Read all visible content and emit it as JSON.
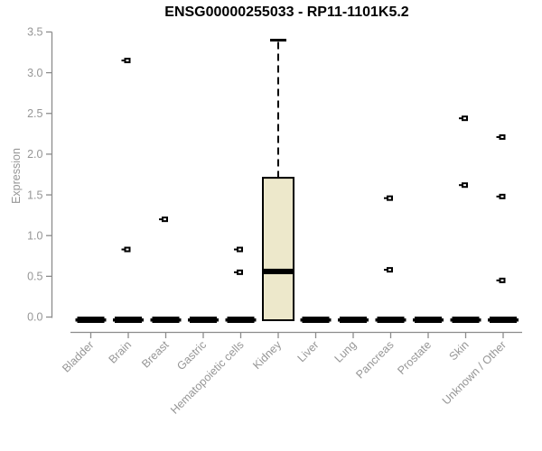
{
  "chart_data": {
    "type": "boxplot",
    "title": "ENSG00000255033 - RP11-1101K5.2",
    "ylabel": "Expression",
    "xlabel": "",
    "ylim": [
      0,
      3.5
    ],
    "yticks": [
      0.0,
      0.5,
      1.0,
      1.5,
      2.0,
      2.5,
      3.0,
      3.5
    ],
    "grid": false,
    "legend": "none",
    "categories": [
      "Bladder",
      "Brain",
      "Breast",
      "Gastric",
      "Hematopoietic cells",
      "Kidney",
      "Liver",
      "Lung",
      "Pancreas",
      "Prostate",
      "Skin",
      "Unknown / Other"
    ],
    "boxes": [
      {
        "category": "Bladder",
        "q1": 0,
        "median": 0,
        "q3": 0,
        "whisker_low": 0,
        "whisker_high": 0,
        "outliers": []
      },
      {
        "category": "Brain",
        "q1": 0,
        "median": 0,
        "q3": 0,
        "whisker_low": 0,
        "whisker_high": 0,
        "outliers": [
          3.15,
          0.83
        ]
      },
      {
        "category": "Breast",
        "q1": 0,
        "median": 0,
        "q3": 0,
        "whisker_low": 0,
        "whisker_high": 0,
        "outliers": [
          1.2
        ]
      },
      {
        "category": "Gastric",
        "q1": 0,
        "median": 0,
        "q3": 0,
        "whisker_low": 0,
        "whisker_high": 0,
        "outliers": []
      },
      {
        "category": "Hematopoietic cells",
        "q1": 0,
        "median": 0,
        "q3": 0,
        "whisker_low": 0,
        "whisker_high": 0,
        "outliers": [
          0.83,
          0.55
        ]
      },
      {
        "category": "Kidney",
        "q1": 0,
        "median": 0.56,
        "q3": 1.71,
        "whisker_low": 0,
        "whisker_high": 3.4,
        "outliers": []
      },
      {
        "category": "Liver",
        "q1": 0,
        "median": 0,
        "q3": 0,
        "whisker_low": 0,
        "whisker_high": 0,
        "outliers": []
      },
      {
        "category": "Lung",
        "q1": 0,
        "median": 0,
        "q3": 0,
        "whisker_low": 0,
        "whisker_high": 0,
        "outliers": []
      },
      {
        "category": "Pancreas",
        "q1": 0,
        "median": 0,
        "q3": 0,
        "whisker_low": 0,
        "whisker_high": 0,
        "outliers": [
          1.46,
          0.58
        ]
      },
      {
        "category": "Prostate",
        "q1": 0,
        "median": 0,
        "q3": 0,
        "whisker_low": 0,
        "whisker_high": 0,
        "outliers": []
      },
      {
        "category": "Skin",
        "q1": 0,
        "median": 0,
        "q3": 0,
        "whisker_low": 0,
        "whisker_high": 0,
        "outliers": [
          2.44,
          1.62
        ]
      },
      {
        "category": "Unknown / Other",
        "q1": 0,
        "median": 0,
        "q3": 0,
        "whisker_low": 0,
        "whisker_high": 0,
        "outliers": [
          2.21,
          1.48,
          0.45
        ]
      }
    ],
    "colors": {
      "box_fill": "#EDE8CB",
      "box_stroke": "#000000",
      "median": "#000000",
      "whisker": "#000000",
      "outlier": "#000000",
      "axis_line": "#8C8C8C",
      "tick_label": "#969696",
      "title": "#000000",
      "background": "#FFFFFF"
    }
  }
}
